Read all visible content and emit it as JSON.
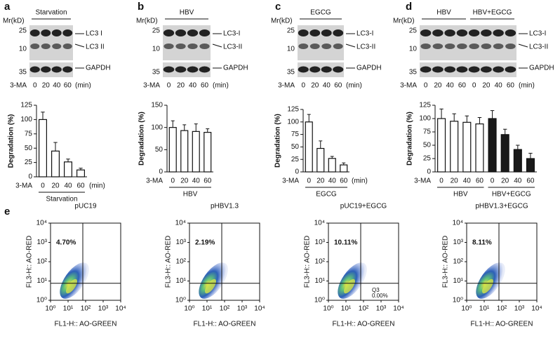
{
  "panel_letters": [
    "a",
    "b",
    "c",
    "d",
    "e"
  ],
  "blots": [
    {
      "mr_label": "Mr(kD)",
      "groups": [
        "Starvation"
      ],
      "markers": [
        25,
        10,
        35
      ],
      "bands": [
        "LC3 I",
        "LC3 II",
        "GAPDH"
      ],
      "treatment": "3-MA",
      "lanes": [
        "0",
        "20",
        "40",
        "60"
      ],
      "unit": "(min)"
    },
    {
      "mr_label": "Mr(kD)",
      "groups": [
        "HBV"
      ],
      "markers": [
        25,
        10,
        35
      ],
      "bands": [
        "LC3-I",
        "LC3-II",
        "GAPDH"
      ],
      "treatment": "3-MA",
      "lanes": [
        "0",
        "20",
        "40",
        "60"
      ],
      "unit": "(min)"
    },
    {
      "mr_label": "Mr(kD)",
      "groups": [
        "EGCG"
      ],
      "markers": [
        25,
        10,
        35
      ],
      "bands": [
        "LC3-I",
        "LC3-II",
        "GAPDH"
      ],
      "treatment": "3-MA",
      "lanes": [
        "0",
        "20",
        "40",
        "60"
      ],
      "unit": "(min)"
    },
    {
      "mr_label": "Mr(kD)",
      "groups": [
        "HBV",
        "HBV+EGCG"
      ],
      "markers": [
        25,
        10,
        35
      ],
      "bands": [
        "LC3-I",
        "LC3-II",
        "GAPDH"
      ],
      "treatment": "3-MA",
      "lanes": [
        "0",
        "20",
        "40",
        "60",
        "0",
        "20",
        "40",
        "60"
      ],
      "unit": "(min)"
    }
  ],
  "chart_data": [
    {
      "type": "bar",
      "y_label": "Degradation (%)",
      "x_label": "3-MA",
      "unit": "(min)",
      "categories": [
        "0",
        "20",
        "40",
        "60"
      ],
      "series": [
        {
          "name": "Starvation",
          "color": "#ffffff",
          "values": [
            100,
            45,
            26,
            12
          ],
          "errors": [
            13,
            15,
            5,
            3
          ]
        }
      ],
      "ylim": [
        0,
        125
      ],
      "yticks": [
        0,
        25,
        50,
        75,
        100,
        125
      ]
    },
    {
      "type": "bar",
      "y_label": "Degradation (%)",
      "x_label": "3-MA",
      "categories": [
        "0",
        "20",
        "40",
        "60"
      ],
      "series": [
        {
          "name": "HBV",
          "color": "#ffffff",
          "values": [
            100,
            93,
            91,
            89
          ],
          "errors": [
            15,
            13,
            17,
            8
          ]
        }
      ],
      "ylim": [
        0,
        150
      ],
      "yticks": [
        0,
        50,
        100,
        150
      ]
    },
    {
      "type": "bar",
      "y_label": "Degradation (%)",
      "x_label": "3-MA",
      "unit": "(min)",
      "categories": [
        "0",
        "20",
        "40",
        "60"
      ],
      "series": [
        {
          "name": "EGCG",
          "color": "#ffffff",
          "values": [
            100,
            47,
            27,
            14
          ],
          "errors": [
            15,
            15,
            4,
            4
          ]
        }
      ],
      "ylim": [
        0,
        125
      ],
      "yticks": [
        0,
        25,
        50,
        75,
        100,
        125
      ]
    },
    {
      "type": "bar",
      "y_label": "Degradation (%)",
      "x_label": "3-MA",
      "categories": [
        "0",
        "20",
        "40",
        "60"
      ],
      "series": [
        {
          "name": "HBV",
          "color": "#ffffff",
          "values": [
            100,
            95,
            93,
            90
          ],
          "errors": [
            18,
            14,
            12,
            12
          ]
        },
        {
          "name": "HBV+EGCG",
          "color": "#1a1a1a",
          "values": [
            100,
            70,
            42,
            25
          ],
          "errors": [
            15,
            10,
            8,
            10
          ]
        }
      ],
      "ylim": [
        0,
        125
      ],
      "yticks": [
        0,
        25,
        50,
        75,
        100,
        125
      ]
    }
  ],
  "flow": {
    "x_label": "FL1-H:: AO-GREEN",
    "y_label": "FL3-H:: AO-RED",
    "log_scale": true,
    "lim": [
      1,
      10000
    ],
    "ticks": [
      {
        "value": 1,
        "label": "10⁰"
      },
      {
        "value": 10,
        "label": "10¹"
      },
      {
        "value": 100,
        "label": "10²"
      },
      {
        "value": 1000,
        "label": "10³"
      },
      {
        "value": 10000,
        "label": "10⁴"
      }
    ],
    "plots": [
      {
        "title": "pUC19",
        "percent": "4.70%"
      },
      {
        "title": "pHBV1.3",
        "percent": "2.19%"
      },
      {
        "title": "pUC19+EGCG",
        "percent": "10.11%",
        "quadrant": "Q3",
        "quadrant_percent": "0.00%"
      },
      {
        "title": "pHBV1.3+EGCG",
        "percent": "8.11%"
      }
    ]
  }
}
